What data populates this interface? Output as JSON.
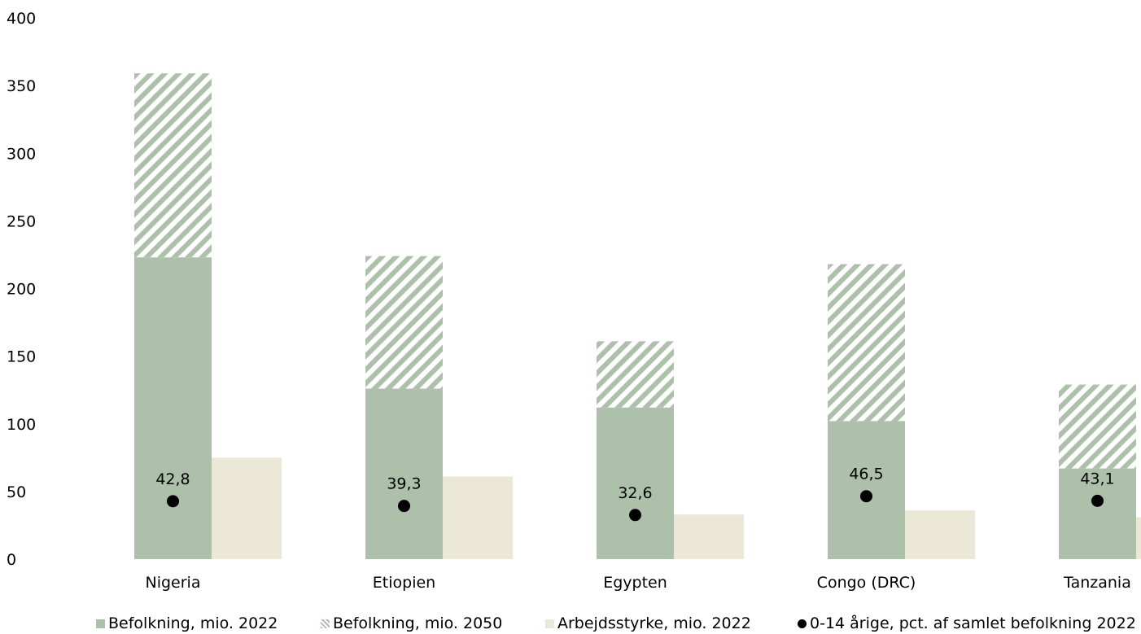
{
  "chart_data": {
    "type": "bar",
    "categories": [
      "Nigeria",
      "Etiopien",
      "Egypten",
      "Congo (DRC)",
      "Tanzania"
    ],
    "series": [
      {
        "name": "Befolkning, mio. 2022",
        "values": [
          223,
          126,
          112,
          102,
          67
        ],
        "color": "#adc0aa",
        "pattern": "solid"
      },
      {
        "name": "Befolkning, mio. 2050",
        "values": [
          359,
          224,
          161,
          218,
          129
        ],
        "color": "#adc0aa",
        "pattern": "hatched"
      },
      {
        "name": "Arbejdsstyrke, mio. 2022",
        "values": [
          75,
          61,
          33,
          36,
          31
        ],
        "color": "#ebe8d7",
        "pattern": "solid"
      },
      {
        "name": "0-14 årige, pct. af samlet befolkning 2022",
        "values": [
          42.8,
          39.3,
          32.6,
          46.5,
          43.1
        ],
        "labels": [
          "42,8",
          "39,3",
          "32,6",
          "46,5",
          "43,1"
        ],
        "color": "#000000",
        "marker": "dot"
      }
    ],
    "yticks": [
      "0",
      "50",
      "100",
      "150",
      "200",
      "250",
      "300",
      "350",
      "400"
    ],
    "ylim": [
      0,
      400
    ],
    "grid": false,
    "legend_position": "bottom"
  }
}
